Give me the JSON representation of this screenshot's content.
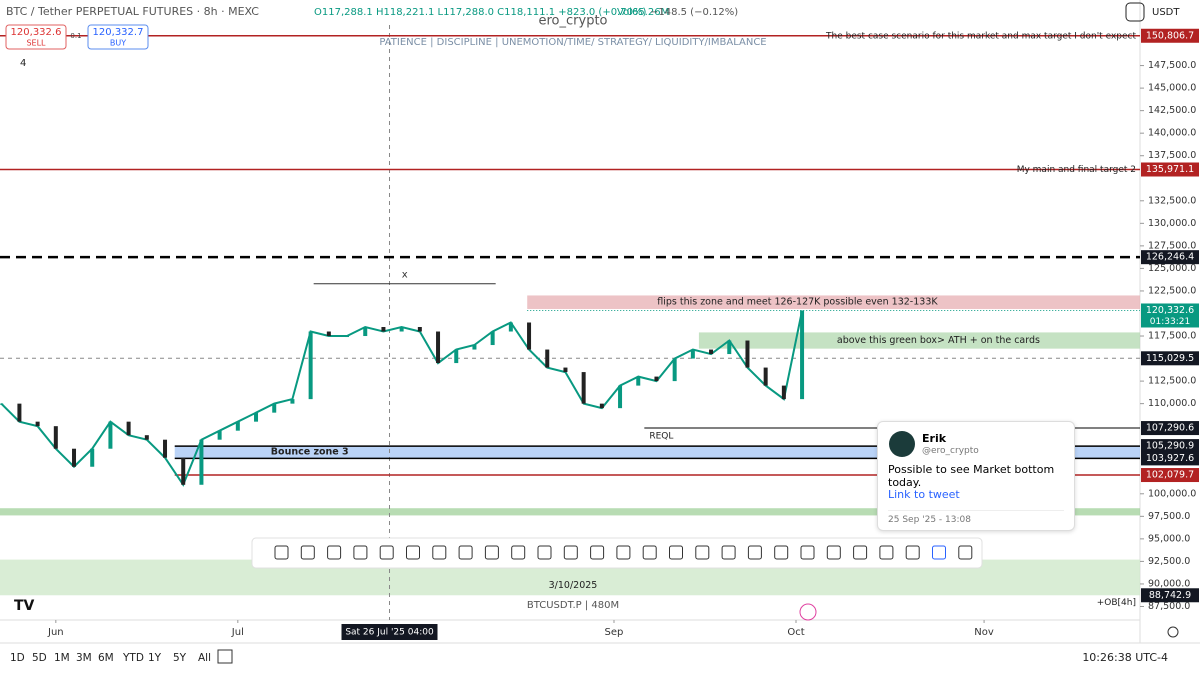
{
  "header": {
    "symbol": "BTC / Tether PERPETUAL FUTURES · 8h · MEXC",
    "ohlc": "O117,288.1 H118,221.1 L117,288.0 C118,111.1 +823.0 (+0.70%)",
    "volume": "Vol65.26M",
    "volume_delta": "−148.5 (−0.12%)",
    "currency": "USDT"
  },
  "trade": {
    "sell_price": "120,332.6",
    "sell": "SELL",
    "spread": "0.1",
    "buy_price": "120,332.7",
    "buy": "BUY",
    "indicator_count": "4"
  },
  "watermark": {
    "author": "ero_crypto",
    "motto": "PATIENCE  |  DISCIPLINE  |  UNEMOTION/TIME/ STRATEGY/ LIQUIDITY/IMBALANCE",
    "symbol_info": "BTCUSDT.P | 480M"
  },
  "chart": {
    "type": "line",
    "xlim": [
      -9.2,
      178.7
    ],
    "ylim": [
      86000,
      152000
    ],
    "xticks": [
      {
        "value": 0,
        "label": "Jun"
      },
      {
        "value": 30,
        "label": "Jul"
      },
      {
        "value": 92,
        "label": "Sep"
      },
      {
        "value": 122,
        "label": "Oct"
      },
      {
        "value": 153,
        "label": "Nov"
      }
    ],
    "yticks": [
      {
        "value": 87500,
        "label": "87,500.0"
      },
      {
        "value": 90000,
        "label": "90,000.0"
      },
      {
        "value": 92500,
        "label": "92,500.0"
      },
      {
        "value": 95000,
        "label": "95,000.0"
      },
      {
        "value": 97500,
        "label": "97,500.0"
      },
      {
        "value": 100000,
        "label": "100,000.0"
      },
      {
        "value": 110000,
        "label": "110,000.0"
      },
      {
        "value": 112500,
        "label": "112,500.0"
      },
      {
        "value": 117500,
        "label": "117,500.0"
      },
      {
        "value": 122500,
        "label": "122,500.0"
      },
      {
        "value": 125000,
        "label": "125,000.0"
      },
      {
        "value": 127500,
        "label": "127,500.0"
      },
      {
        "value": 130000,
        "label": "130,000.0"
      },
      {
        "value": 132500,
        "label": "132,500.0"
      },
      {
        "value": 137500,
        "label": "137,500.0"
      },
      {
        "value": 140000,
        "label": "140,000.0"
      },
      {
        "value": 142500,
        "label": "142,500.0"
      },
      {
        "value": 145000,
        "label": "145,000.0"
      },
      {
        "value": 147500,
        "label": "147,500.0"
      }
    ],
    "series": [
      {
        "name": "BTCUSDT.P",
        "color": "#089981",
        "x": [
          -9,
          -6,
          -3,
          0,
          3,
          6,
          9,
          12,
          15,
          18,
          21,
          24,
          27,
          30,
          33,
          36,
          39,
          42,
          45,
          48,
          51,
          54,
          57,
          60,
          63,
          66,
          69,
          72,
          75,
          78,
          81,
          84,
          87,
          90,
          93,
          96,
          99,
          102,
          105,
          108,
          111,
          114,
          117,
          120,
          123
        ],
        "values": [
          110000,
          108000,
          107500,
          105000,
          103000,
          105000,
          108000,
          106500,
          106000,
          104000,
          101000,
          106000,
          107000,
          108000,
          109000,
          110000,
          110500,
          118000,
          117500,
          117500,
          118500,
          118000,
          118500,
          118000,
          114500,
          116000,
          116500,
          118000,
          119000,
          116000,
          114000,
          113500,
          110000,
          109500,
          112000,
          113000,
          112500,
          115000,
          116000,
          115500,
          117000,
          114000,
          112000,
          110500,
          120332.6
        ]
      }
    ],
    "levels": [
      {
        "value": 150806.7,
        "label": "150,806.7",
        "note": "The best case scenario for this market and max target I don't expect",
        "color": "#b22222",
        "style": "solid"
      },
      {
        "value": 135971.1,
        "label": "135,971.1",
        "note": "My main and final target 2",
        "color": "#b22222",
        "style": "solid"
      },
      {
        "value": 126246.4,
        "label": "126,246.4",
        "color": "#000000",
        "style": "dashed"
      },
      {
        "value": 120332.6,
        "label": "120,332.6",
        "countdown": "01:33:21",
        "color": "#089981",
        "style": "dotted"
      },
      {
        "value": 115029.5,
        "label": "115,029.5",
        "color": "#888888",
        "style": "crosshair"
      },
      {
        "value": 107290.6,
        "label": "107,290.6",
        "note": "REQL",
        "color": "#000000",
        "style": "thin"
      },
      {
        "value": 105290.9,
        "label": "105,290.9",
        "color": "#000000",
        "style": "solid"
      },
      {
        "value": 103927.6,
        "label": "103,927.6",
        "color": "#000000",
        "style": "solid"
      },
      {
        "value": 102079.7,
        "label": "102,079.7",
        "color": "#b22222",
        "style": "solid"
      },
      {
        "value": 88742.9,
        "label": "88,742.9",
        "note": "+OB[4h]",
        "color": "#000000",
        "style": "none"
      }
    ],
    "zones": [
      {
        "from": 77.7,
        "low": 120500,
        "high": 122000,
        "color": "#e8b4b8",
        "text": "flips this zone and meet 126-127K possible even 132-133K"
      },
      {
        "from": 106,
        "low": 116100,
        "high": 117900,
        "color": "#b7dbb4",
        "text": "above this green box> ATH + on the cards"
      },
      {
        "from": 19.6,
        "low": 103927.6,
        "high": 105290.9,
        "color": "#a9c8f5",
        "text": "Bounce zone 3"
      },
      {
        "from": -9.2,
        "low": 97600,
        "high": 98400,
        "color": "#a6d3a0"
      },
      {
        "from": -9.2,
        "low": 88742.9,
        "high": 92700,
        "color": "#cfe8cb",
        "text": "3/10/2025"
      }
    ],
    "crosshair": {
      "x": 55,
      "label": "Sat 26 Jul '25 04:00"
    },
    "range_marker": "x"
  },
  "tweet": {
    "name": "Erik",
    "handle": "@ero_crypto",
    "text": "Possible to see Market bottom today.",
    "link": "Link to tweet",
    "date": "25 Sep '25 - 13:08"
  },
  "footer": {
    "ranges": [
      "1D",
      "5D",
      "1M",
      "3M",
      "6M",
      "YTD",
      "1Y",
      "5Y",
      "All"
    ],
    "clock": "10:26:38 UTC-4"
  }
}
